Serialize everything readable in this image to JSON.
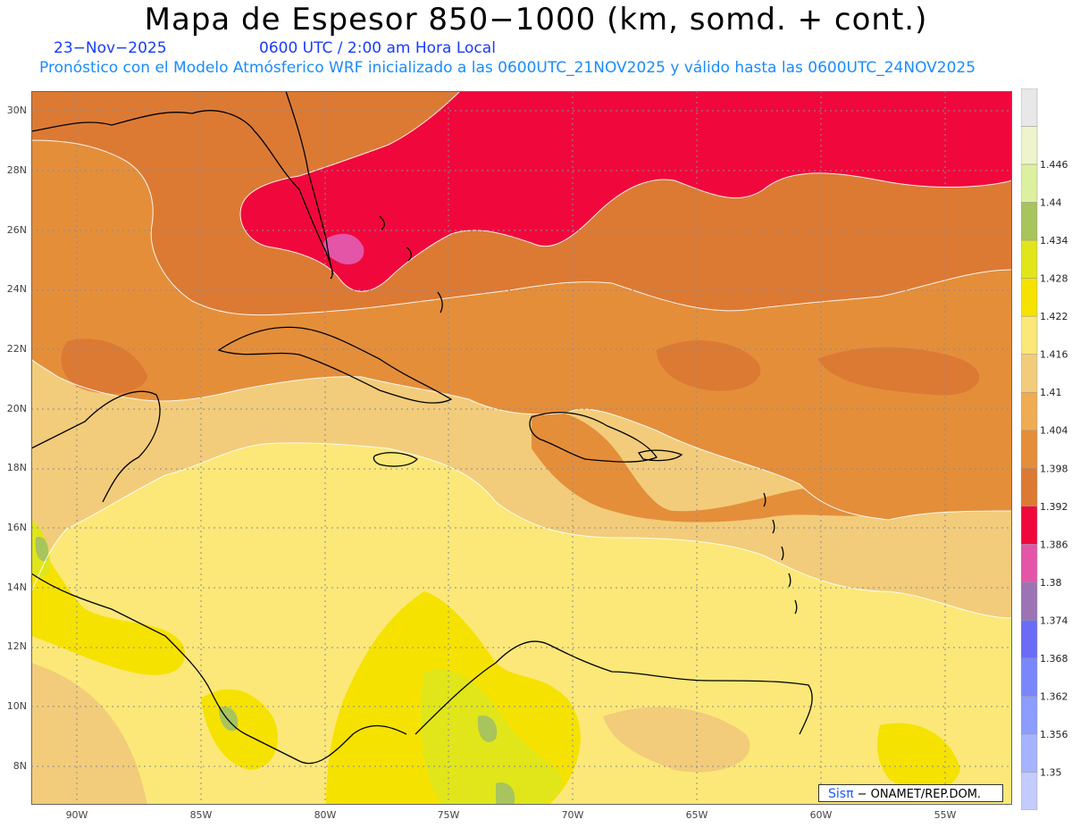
{
  "title": "Mapa de Espesor 850−1000 (km, somd. + cont.)",
  "date": "23−Nov−2025",
  "time": "0600 UTC / 2:00 am Hora Local",
  "subtitle": "Pronóstico con el Modelo Atmósferico WRF inicializado a las 0600UTC_21NOV2025 y válido hasta las  0600UTC_24NOV2025",
  "credit": {
    "brand": "Sisπ",
    "text": "− ONAMET/REP.DOM."
  },
  "lat_labels": [
    "30N",
    "28N",
    "26N",
    "24N",
    "22N",
    "20N",
    "18N",
    "16N",
    "14N",
    "12N",
    "10N",
    "8N"
  ],
  "lon_labels": [
    "90W",
    "85W",
    "80W",
    "75W",
    "70W",
    "65W",
    "60W",
    "55W"
  ],
  "colorbar": [
    {
      "color": "#c4ccff",
      "label": ""
    },
    {
      "color": "#a6b4ff",
      "label": "1.35"
    },
    {
      "color": "#8c9cff",
      "label": "1.356"
    },
    {
      "color": "#7a86fc",
      "label": "1.362"
    },
    {
      "color": "#6a6cf6",
      "label": "1.368"
    },
    {
      "color": "#9c74b4",
      "label": "1.374"
    },
    {
      "color": "#e455a8",
      "label": "1.38"
    },
    {
      "color": "#f0083c",
      "label": "1.386"
    },
    {
      "color": "#dc7a34",
      "label": "1.392"
    },
    {
      "color": "#e48e3a",
      "label": "1.398"
    },
    {
      "color": "#f0ac52",
      "label": "1.404"
    },
    {
      "color": "#f2cc7a",
      "label": "1.41"
    },
    {
      "color": "#fce878",
      "label": "1.416"
    },
    {
      "color": "#f6e200",
      "label": "1.422"
    },
    {
      "color": "#e0e61a",
      "label": "1.428"
    },
    {
      "color": "#a8c45c",
      "label": "1.434"
    },
    {
      "color": "#dcf0a0",
      "label": "1.44"
    },
    {
      "color": "#eef4cc",
      "label": "1.446"
    },
    {
      "color": "#e8e8e8",
      "label": ""
    }
  ]
}
